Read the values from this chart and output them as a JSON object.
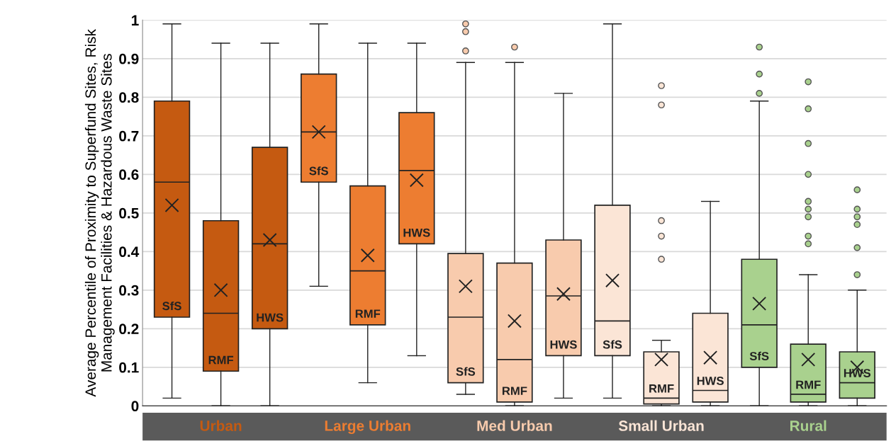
{
  "chart_data": {
    "type": "box",
    "ylabel": "Average Percentile of Proximity to Superfund Sites, Risk Management Facilities & Hazardous Waste Sites",
    "categories": [
      null,
      null,
      null,
      null,
      null,
      null,
      null,
      null,
      null,
      null,
      null,
      null,
      null,
      null,
      null
    ],
    "annotations": [
      "SfS",
      "RMF",
      "HWS",
      "SfS",
      "RMF",
      "HWS",
      "SfS",
      "RMF",
      "HWS",
      "SfS",
      "RMF",
      "HWS",
      "SfS",
      "RMF",
      "HWS"
    ],
    "ylim": [
      0,
      1
    ],
    "yticks": [
      0,
      0.1,
      0.2,
      0.3,
      0.4,
      0.5,
      0.6,
      0.7,
      0.8,
      0.9,
      1
    ],
    "grid": "y",
    "marker": "cross",
    "series": [
      {
        "name": "Urban",
        "color": "#c55a11",
        "boxes": [
          {
            "low": 0.02,
            "q1": 0.23,
            "median": 0.58,
            "q3": 0.79,
            "high": 0.99,
            "mean": 0.52
          },
          {
            "low": 0,
            "q1": 0.09,
            "median": 0.24,
            "q3": 0.48,
            "high": 0.94,
            "mean": 0.3
          },
          {
            "low": 0,
            "q1": 0.2,
            "median": 0.42,
            "q3": 0.67,
            "high": 0.94,
            "mean": 0.43
          },
          null,
          null,
          null,
          null,
          null,
          null,
          null,
          null,
          null,
          null,
          null,
          null
        ]
      },
      {
        "name": "Large Urban",
        "color": "#ed7d31",
        "boxes": [
          null,
          null,
          null,
          {
            "low": 0.31,
            "q1": 0.58,
            "median": 0.71,
            "q3": 0.86,
            "high": 0.99,
            "mean": 0.71
          },
          {
            "low": 0.06,
            "q1": 0.21,
            "median": 0.35,
            "q3": 0.57,
            "high": 0.94,
            "mean": 0.39
          },
          {
            "low": 0.13,
            "q1": 0.42,
            "median": 0.61,
            "q3": 0.76,
            "high": 0.94,
            "mean": 0.585
          },
          null,
          null,
          null,
          null,
          null,
          null,
          null,
          null,
          null
        ]
      },
      {
        "name": "Med Urban",
        "color": "#f8cbad",
        "boxes": [
          null,
          null,
          null,
          null,
          null,
          null,
          {
            "low": 0.03,
            "q1": 0.06,
            "median": 0.23,
            "q3": 0.395,
            "high": 0.89,
            "mean": 0.31,
            "outliers": [
              0.92,
              0.97,
              0.99
            ]
          },
          {
            "low": 0,
            "q1": 0.01,
            "median": 0.12,
            "q3": 0.37,
            "high": 0.89,
            "mean": 0.22,
            "outliers": [
              0.93
            ]
          },
          {
            "low": 0.02,
            "q1": 0.13,
            "median": 0.285,
            "q3": 0.43,
            "high": 0.81,
            "mean": 0.29
          },
          null,
          null,
          null,
          null,
          null,
          null
        ]
      },
      {
        "name": "Small Urban",
        "color": "#fbe5d6",
        "boxes": [
          null,
          null,
          null,
          null,
          null,
          null,
          null,
          null,
          null,
          {
            "low": 0.02,
            "q1": 0.13,
            "median": 0.22,
            "q3": 0.52,
            "high": 0.99,
            "mean": 0.325
          },
          {
            "low": 0,
            "q1": 0.005,
            "median": 0.02,
            "q3": 0.14,
            "high": 0.17,
            "mean": 0.12,
            "outliers": [
              0.38,
              0.44,
              0.48,
              0.78,
              0.83
            ]
          },
          {
            "low": 0,
            "q1": 0.01,
            "median": 0.04,
            "q3": 0.24,
            "high": 0.53,
            "mean": 0.125
          },
          null,
          null,
          null
        ]
      },
      {
        "name": "Rural",
        "color": "#a9d18e",
        "boxes": [
          null,
          null,
          null,
          null,
          null,
          null,
          null,
          null,
          null,
          null,
          null,
          null,
          {
            "low": 0,
            "q1": 0.1,
            "median": 0.21,
            "q3": 0.38,
            "high": 0.79,
            "mean": 0.265,
            "outliers": [
              0.81,
              0.86,
              0.93
            ]
          },
          {
            "low": 0,
            "q1": 0.01,
            "median": 0.03,
            "q3": 0.16,
            "high": 0.34,
            "mean": 0.12,
            "outliers": [
              0.42,
              0.44,
              0.49,
              0.51,
              0.53,
              0.6,
              0.68,
              0.77,
              0.84
            ]
          },
          {
            "low": 0,
            "q1": 0.02,
            "median": 0.06,
            "q3": 0.14,
            "high": 0.3,
            "mean": 0.1,
            "outliers": [
              0.34,
              0.41,
              0.47,
              0.49,
              0.51,
              0.56
            ]
          }
        ]
      }
    ]
  }
}
